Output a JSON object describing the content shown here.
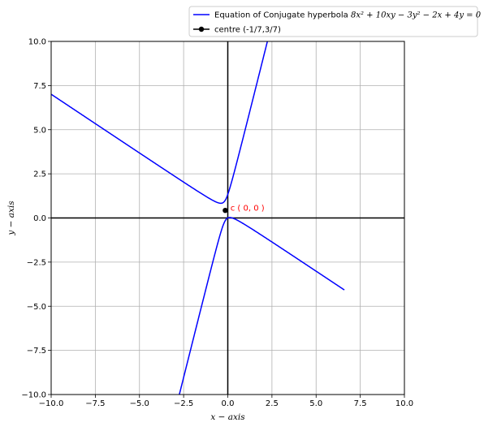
{
  "chart_data": {
    "type": "line",
    "xlabel": "x − axis",
    "ylabel": "y − axis",
    "xlim": [
      -10,
      10
    ],
    "ylim": [
      -10,
      10
    ],
    "xticks": [
      -10.0,
      -7.5,
      -5.0,
      -2.5,
      0.0,
      2.5,
      5.0,
      7.5,
      10.0
    ],
    "yticks": [
      -10.0,
      -7.5,
      -5.0,
      -2.5,
      0.0,
      2.5,
      5.0,
      7.5,
      10.0
    ],
    "xtick_labels": [
      "−10.0",
      "−7.5",
      "−5.0",
      "−2.5",
      "0.0",
      "2.5",
      "5.0",
      "7.5",
      "10.0"
    ],
    "ytick_labels": [
      "−10.0",
      "−7.5",
      "−5.0",
      "−2.5",
      "0.0",
      "2.5",
      "5.0",
      "7.5",
      "10.0"
    ],
    "grid": true,
    "legend_position": "top-right",
    "series": [
      {
        "name": "Equation of Conjugate hyperbola 8x² + 10xy − 3y² − 2x + 4y = 0",
        "color": "#0000ff",
        "kind": "implicit-curve",
        "equation": "8x^2 + 10xy - 3y^2 - 2x + 4y = 0",
        "x_range": [
          -10,
          6.6
        ]
      },
      {
        "name": "centre (-1/7,3/7)",
        "color": "#000000",
        "kind": "point",
        "x": -0.142857,
        "y": 0.428571
      }
    ],
    "annotations": [
      {
        "text": "c ( 0, 0 )",
        "x": 0.15,
        "y": 0.55,
        "color": "#ff0000"
      }
    ],
    "axis_lines": {
      "x": 0,
      "y": 0,
      "color": "#000000"
    }
  },
  "legend": {
    "entries": [
      {
        "label_plain": "Equation of Conjugate hyperbola ",
        "label_math": "8x² + 10xy − 3y² − 2x + 4y = 0"
      },
      {
        "label_plain": "centre (-1/7,3/7)",
        "label_math": ""
      }
    ]
  }
}
